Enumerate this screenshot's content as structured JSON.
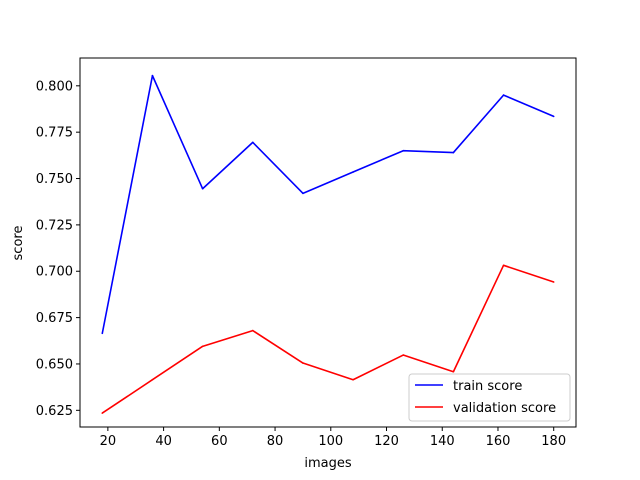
{
  "chart_data": {
    "type": "line",
    "xlabel": "images",
    "ylabel": "score",
    "xlim": [
      10,
      188
    ],
    "ylim": [
      0.616,
      0.815
    ],
    "xticks": [
      20,
      40,
      60,
      80,
      100,
      120,
      140,
      160,
      180
    ],
    "yticks": [
      0.625,
      0.65,
      0.675,
      0.7,
      0.725,
      0.75,
      0.775,
      0.8
    ],
    "xtick_labels": [
      "20",
      "40",
      "60",
      "80",
      "100",
      "120",
      "140",
      "160",
      "180"
    ],
    "ytick_labels": [
      "0.625",
      "0.650",
      "0.675",
      "0.700",
      "0.725",
      "0.750",
      "0.775",
      "0.800"
    ],
    "grid": false,
    "legend_position": "lower-right",
    "x": [
      18,
      36,
      54,
      72,
      90,
      108,
      126,
      144,
      162,
      180
    ],
    "series": [
      {
        "name": "train score",
        "color": "#0000ff",
        "values": [
          0.6665,
          0.8055,
          0.7445,
          0.7695,
          0.742,
          0.7535,
          0.765,
          0.764,
          0.795,
          0.7835
        ]
      },
      {
        "name": "validation score",
        "color": "#ff0000",
        "values": [
          0.6235,
          0.6415,
          0.6595,
          0.668,
          0.6505,
          0.6415,
          0.6548,
          0.6458,
          0.7032,
          0.6942
        ]
      }
    ]
  }
}
